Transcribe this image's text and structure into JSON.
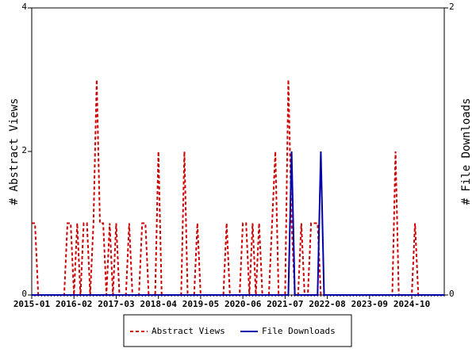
{
  "chart_data": {
    "type": "line",
    "ylabel": "# Abstract Views",
    "y2label": "# File Downloads",
    "x": [
      "2015-01",
      "2015-02",
      "2015-03",
      "2015-04",
      "2015-05",
      "2015-06",
      "2015-07",
      "2015-08",
      "2015-09",
      "2015-10",
      "2015-11",
      "2015-12",
      "2016-01",
      "2016-02",
      "2016-03",
      "2016-04",
      "2016-05",
      "2016-06",
      "2016-07",
      "2016-08",
      "2016-09",
      "2016-10",
      "2016-11",
      "2016-12",
      "2017-01",
      "2017-02",
      "2017-03",
      "2017-04",
      "2017-05",
      "2017-06",
      "2017-07",
      "2017-08",
      "2017-09",
      "2017-10",
      "2017-11",
      "2017-12",
      "2018-01",
      "2018-02",
      "2018-03",
      "2018-04",
      "2018-05",
      "2018-06",
      "2018-07",
      "2018-08",
      "2018-09",
      "2018-10",
      "2018-11",
      "2018-12",
      "2019-01",
      "2019-02",
      "2019-03",
      "2019-04",
      "2019-05",
      "2019-06",
      "2019-07",
      "2019-08",
      "2019-09",
      "2019-10",
      "2019-11",
      "2019-12",
      "2020-01",
      "2020-02",
      "2020-03",
      "2020-04",
      "2020-05",
      "2020-06",
      "2020-07",
      "2020-08",
      "2020-09",
      "2020-10",
      "2020-11",
      "2020-12",
      "2021-01",
      "2021-02",
      "2021-03",
      "2021-04",
      "2021-05",
      "2021-06",
      "2021-07",
      "2021-08",
      "2021-09",
      "2021-10",
      "2021-11",
      "2021-12",
      "2022-01",
      "2022-02",
      "2022-03",
      "2022-04",
      "2022-05",
      "2022-06",
      "2022-07",
      "2022-08",
      "2022-09",
      "2022-10",
      "2022-11",
      "2022-12",
      "2023-01",
      "2023-02",
      "2023-03",
      "2023-04",
      "2023-05",
      "2023-06",
      "2023-07",
      "2023-08",
      "2023-09",
      "2023-10",
      "2023-11",
      "2023-12",
      "2024-01",
      "2024-02",
      "2024-03",
      "2024-04",
      "2024-05",
      "2024-06",
      "2024-07",
      "2024-08",
      "2024-09",
      "2024-10",
      "2024-11",
      "2024-12",
      "2025-01",
      "2025-02",
      "2025-03",
      "2025-04",
      "2025-05",
      "2025-06",
      "2025-07",
      "2025-08"
    ],
    "xticks": [
      "2015-01",
      "2016-02",
      "2017-03",
      "2018-04",
      "2019-05",
      "2020-06",
      "2021-07",
      "2022-08",
      "2023-09",
      "2024-10"
    ],
    "series": [
      {
        "name": "Abstract Views",
        "color": "#cc0000",
        "dash": true,
        "axis": "y",
        "values": [
          1,
          1,
          0,
          0,
          0,
          0,
          0,
          0,
          0,
          0,
          0,
          1,
          1,
          0,
          1,
          0,
          1,
          1,
          0,
          1,
          3,
          1,
          1,
          0,
          1,
          0,
          1,
          0,
          0,
          0,
          1,
          0,
          0,
          0,
          1,
          1,
          0,
          0,
          0,
          2,
          0,
          0,
          0,
          0,
          0,
          0,
          0,
          2,
          0,
          0,
          0,
          1,
          0,
          0,
          0,
          0,
          0,
          0,
          0,
          0,
          1,
          0,
          0,
          0,
          0,
          1,
          1,
          0,
          1,
          0,
          1,
          0,
          0,
          0,
          1,
          2,
          0,
          0,
          0,
          3,
          1,
          0,
          0,
          1,
          0,
          0,
          1,
          1,
          1,
          0,
          0,
          0,
          0,
          0,
          0,
          0,
          0,
          0,
          0,
          0,
          0,
          0,
          0,
          0,
          0,
          0,
          0,
          0,
          0,
          0,
          0,
          0,
          2,
          0,
          0,
          0,
          0,
          0,
          1,
          0,
          0,
          0,
          0,
          0,
          0,
          0,
          0,
          0
        ]
      },
      {
        "name": "File Downloads",
        "color": "#0000aa",
        "dash": false,
        "axis": "y2",
        "values": [
          0,
          0,
          0,
          0,
          0,
          0,
          0,
          0,
          0,
          0,
          0,
          0,
          0,
          0,
          0,
          0,
          0,
          0,
          0,
          0,
          0,
          0,
          0,
          0,
          0,
          0,
          0,
          0,
          0,
          0,
          0,
          0,
          0,
          0,
          0,
          0,
          0,
          0,
          0,
          0,
          0,
          0,
          0,
          0,
          0,
          0,
          0,
          0,
          0,
          0,
          0,
          0,
          0,
          0,
          0,
          0,
          0,
          0,
          0,
          0,
          0,
          0,
          0,
          0,
          0,
          0,
          0,
          0,
          0,
          0,
          0,
          0,
          0,
          0,
          0,
          0,
          0,
          0,
          0,
          0,
          1,
          0,
          0,
          0,
          0,
          0,
          0,
          0,
          0,
          1,
          0,
          0,
          0,
          0,
          0,
          0,
          0,
          0,
          0,
          0,
          0,
          0,
          0,
          0,
          0,
          0,
          0,
          0,
          0,
          0,
          0,
          0,
          0,
          0,
          0,
          0,
          0,
          0,
          0,
          0,
          0,
          0,
          0,
          0,
          0,
          0,
          0,
          0
        ]
      }
    ],
    "ylim": [
      0,
      4
    ],
    "yticks": [
      0,
      2,
      4
    ],
    "y2lim": [
      0,
      2
    ],
    "y2ticks": [
      0,
      2
    ]
  }
}
